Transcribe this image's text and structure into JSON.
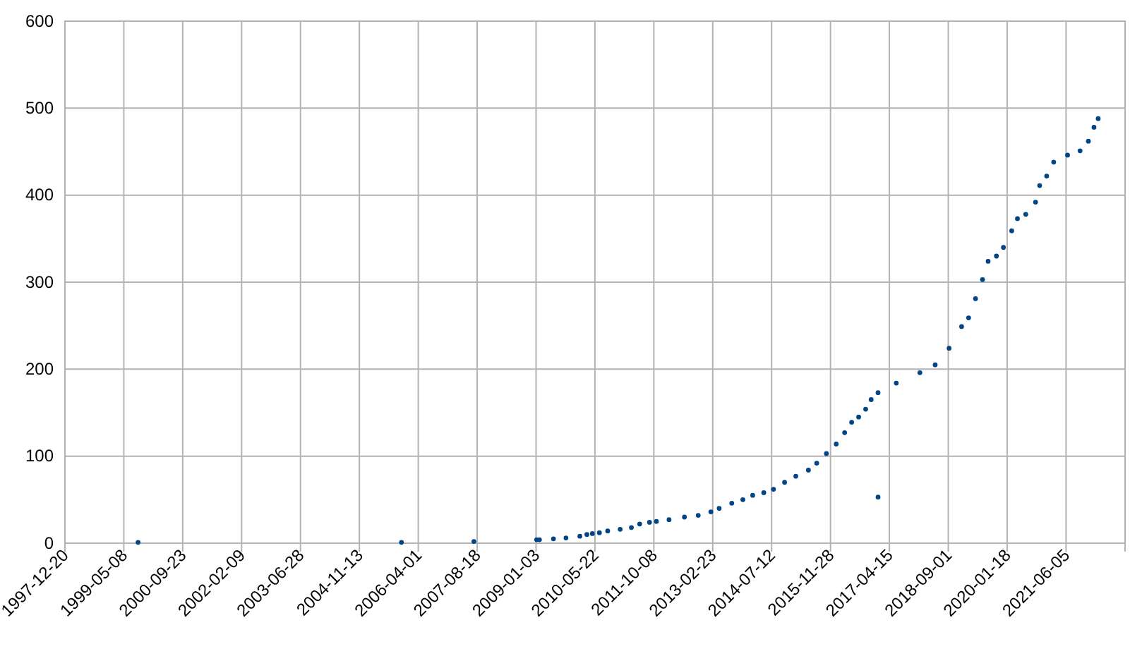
{
  "chart_data": {
    "type": "scatter",
    "marker": "circle",
    "grid": true,
    "xlim": [
      "1997-12-20",
      "2022-10-23"
    ],
    "xticks": [
      "1997-12-20",
      "1999-05-08",
      "2000-09-23",
      "2002-02-09",
      "2003-06-28",
      "2004-11-13",
      "2006-04-01",
      "2007-08-18",
      "2009-01-03",
      "2010-05-22",
      "2011-10-08",
      "2013-02-23",
      "2014-07-12",
      "2015-11-28",
      "2017-04-15",
      "2018-09-01",
      "2020-01-18",
      "2021-06-05"
    ],
    "ylim": [
      0,
      600
    ],
    "yticks": [
      0,
      100,
      200,
      300,
      400,
      500,
      600
    ],
    "series": [
      {
        "color": "#004586",
        "x": [
          "1999-09-07",
          "2005-11-08",
          "2007-07-21",
          "2009-01-08",
          "2009-02-01",
          "2009-06-01",
          "2009-09-16",
          "2010-01-13",
          "2010-03-14",
          "2010-04-30",
          "2010-06-29",
          "2010-09-08",
          "2010-12-24",
          "2011-03-30",
          "2011-06-09",
          "2011-09-01",
          "2011-10-30",
          "2012-02-15",
          "2012-06-26",
          "2012-10-22",
          "2013-02-07",
          "2013-04-19",
          "2013-08-05",
          "2013-11-08",
          "2014-01-31",
          "2014-05-06",
          "2014-07-28",
          "2014-10-31",
          "2015-02-04",
          "2015-05-23",
          "2015-08-02",
          "2015-10-24",
          "2016-01-16",
          "2016-03-28",
          "2016-05-27",
          "2016-07-26",
          "2016-09-24",
          "2016-11-10",
          "2017-01-08",
          "2017-06-13",
          "2018-01-01",
          "2018-05-12",
          "2018-09-08",
          "2018-12-24",
          "2019-02-22",
          "2019-04-22",
          "2019-06-21",
          "2019-08-08",
          "2019-10-18",
          "2019-12-17",
          "2020-02-26",
          "2020-04-15",
          "2020-06-25",
          "2020-09-17",
          "2020-10-22",
          "2020-12-21",
          "2021-02-19",
          "2021-06-18",
          "2021-10-03",
          "2021-12-13",
          "2022-01-30",
          "2022-03-07",
          "2017-01-08"
        ],
        "values": [
          1,
          1,
          2,
          4,
          4,
          5,
          6,
          8,
          10,
          11,
          12,
          14,
          16,
          18,
          22,
          24,
          25,
          27,
          30,
          32,
          36,
          40,
          46,
          50,
          55,
          58,
          62,
          70,
          77,
          84,
          92,
          103,
          114,
          127,
          139,
          145,
          154,
          165,
          173,
          184,
          196,
          205,
          224,
          249,
          259,
          281,
          303,
          324,
          330,
          340,
          359,
          373,
          378,
          392,
          411,
          422,
          438,
          446,
          451,
          462,
          478,
          488,
          53
        ]
      }
    ]
  }
}
